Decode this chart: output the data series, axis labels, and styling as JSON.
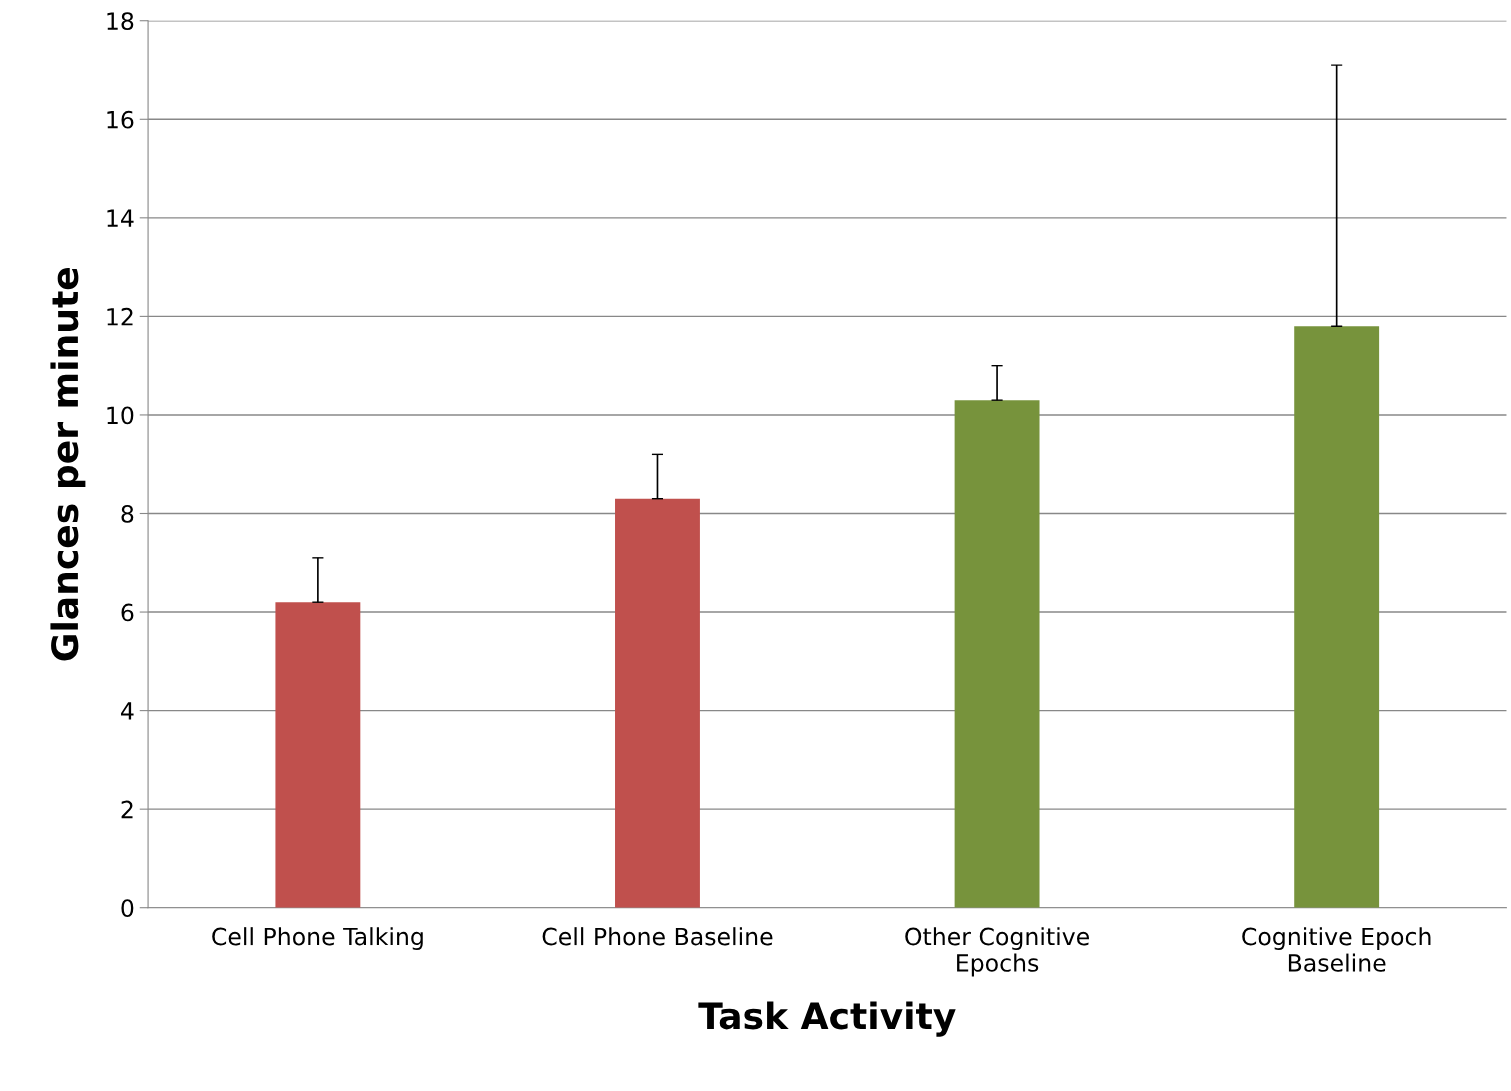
{
  "chart_data": {
    "type": "bar",
    "xlabel": "Task Activity",
    "ylabel": "Glances per minute",
    "categories": [
      "Cell Phone Talking",
      "Cell Phone Baseline",
      "Other Cognitive\nEpochs",
      "Cognitive Epoch\nBaseline"
    ],
    "values": [
      6.2,
      8.3,
      10.3,
      11.8
    ],
    "colors": [
      "#c0504d",
      "#c0504d",
      "#77933c",
      "#77933c"
    ],
    "errors": [
      [
        6.2,
        7.1
      ],
      [
        8.3,
        9.2
      ],
      [
        10.3,
        11.0
      ],
      [
        11.8,
        17.1
      ]
    ],
    "ylim": [
      0,
      18
    ],
    "yticks": [
      0,
      2,
      4,
      6,
      8,
      10,
      12,
      14,
      16,
      18
    ],
    "grid": "y",
    "legend": false
  }
}
